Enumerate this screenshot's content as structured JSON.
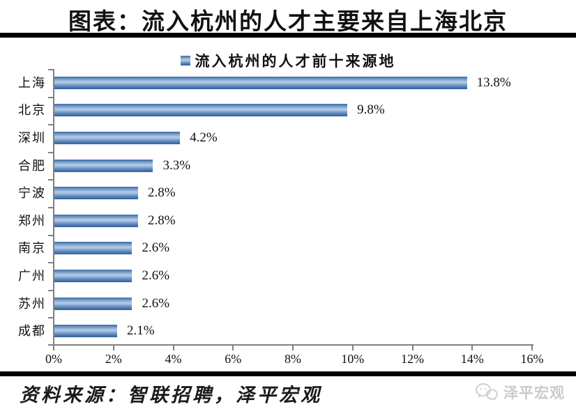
{
  "page": {
    "title": "图表：流入杭州的人才主要来自上海北京",
    "footer_source": "资料来源：智联招聘，泽平宏观",
    "brand_logo_text": "泽平宏观"
  },
  "chart_data": {
    "type": "bar",
    "orientation": "horizontal",
    "legend": [
      "流入杭州的人才前十来源地"
    ],
    "legend_position": "top-center",
    "categories": [
      "上海",
      "北京",
      "深圳",
      "合肥",
      "宁波",
      "郑州",
      "南京",
      "广州",
      "苏州",
      "成都"
    ],
    "values": [
      13.8,
      9.8,
      4.2,
      3.3,
      2.8,
      2.8,
      2.6,
      2.6,
      2.6,
      2.1
    ],
    "value_labels": [
      "13.8%",
      "9.8%",
      "4.2%",
      "3.3%",
      "2.8%",
      "2.8%",
      "2.6%",
      "2.6%",
      "2.6%",
      "2.1%"
    ],
    "xlim": [
      0,
      16
    ],
    "x_ticks": [
      0,
      2,
      4,
      6,
      8,
      10,
      12,
      14,
      16
    ],
    "x_tick_labels": [
      "0%",
      "2%",
      "4%",
      "6%",
      "8%",
      "10%",
      "12%",
      "14%",
      "16%"
    ],
    "grid": false,
    "bar_color": "#4f81bd",
    "axis_color": "#808080"
  },
  "colors": {
    "divider": "#000000",
    "logo_gray": "#cbcbcb"
  }
}
